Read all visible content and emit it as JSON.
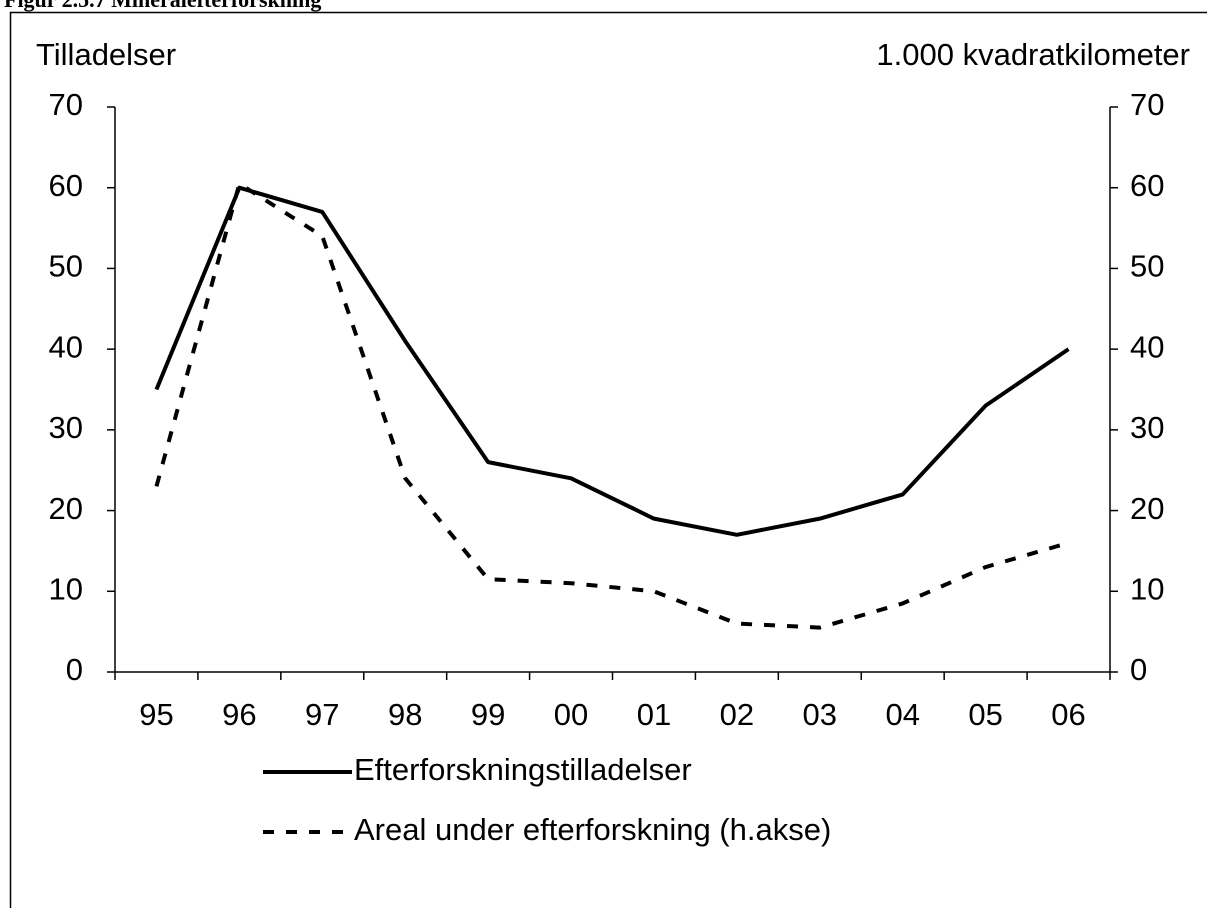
{
  "chart_data": {
    "type": "line",
    "title": "Figur 2.5.7 Mineralefterforskning",
    "y_label": "Tilladelser",
    "y2_label": "1.000 kvadratkilometer",
    "categories": [
      "95",
      "96",
      "97",
      "98",
      "99",
      "00",
      "01",
      "02",
      "03",
      "04",
      "05",
      "06"
    ],
    "series": [
      {
        "name": "Efterforskningstilladelser",
        "color": "#000000",
        "style": "solid",
        "values": [
          35,
          60,
          57,
          41,
          26,
          24,
          19,
          17,
          19,
          22,
          33,
          40
        ]
      },
      {
        "name": "Areal under efterforskning (h.akse)",
        "color": "#000000",
        "style": "dashed",
        "axis": "y2",
        "values": [
          23,
          60.5,
          54,
          24,
          11.5,
          11,
          10,
          6,
          5.5,
          8.5,
          13,
          16
        ]
      }
    ],
    "ylim": [
      0,
      70
    ],
    "yticks": [
      0,
      10,
      20,
      30,
      40,
      50,
      60,
      70
    ],
    "y2lim": [
      0,
      70
    ],
    "y2ticks": [
      0,
      10,
      20,
      30,
      40,
      50,
      60,
      70
    ],
    "grid": false
  }
}
